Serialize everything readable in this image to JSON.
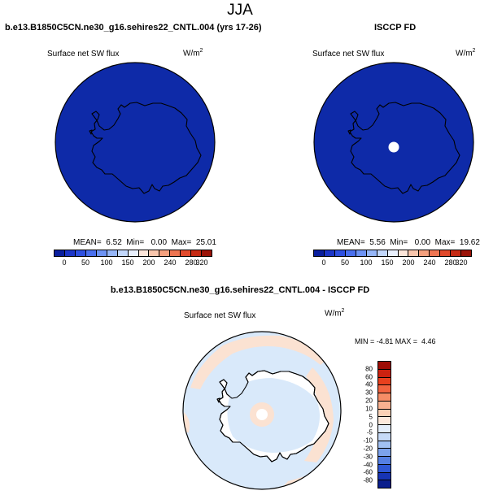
{
  "page": {
    "title": "JJA"
  },
  "panel_left": {
    "title": "b.e13.B1850C5CN.ne30_g16.sehires22_CNTL.004 (yrs 17-26)",
    "variable": "Surface net SW flux",
    "unit_base": "W/m",
    "unit_exp": "2",
    "stats": "MEAN=  6.52  Min=   0.00  Max=  25.01",
    "mean": 6.52,
    "min": 0.0,
    "max": 25.01
  },
  "panel_right": {
    "title": "ISCCP FD",
    "variable": "Surface net SW flux",
    "unit_base": "W/m",
    "unit_exp": "2",
    "stats": "MEAN=  5.56  Min=   0.00  Max=  19.62",
    "mean": 5.56,
    "min": 0.0,
    "max": 19.62
  },
  "panel_diff": {
    "title": "b.e13.B1850C5CN.ne30_g16.sehires22_CNTL.004 - ISCCP FD",
    "variable": "Surface net SW flux",
    "unit_base": "W/m",
    "unit_exp": "2",
    "stats": "MIN = -4.81 MAX =  4.46",
    "min": -4.81,
    "max": 4.46
  },
  "colorbar_abs": {
    "labels": [
      "0",
      "50",
      "100",
      "150",
      "200",
      "240",
      "280",
      "320"
    ],
    "colors": [
      "#0a1f9e",
      "#1c36c8",
      "#2e50e0",
      "#4a70ee",
      "#6d93f4",
      "#96b6f8",
      "#c2d7fb",
      "#e9f0fd",
      "#fde6da",
      "#f9c6ad",
      "#f4a07e",
      "#ee7552",
      "#e14a2c",
      "#c52a14",
      "#9a1308"
    ]
  },
  "colorbar_diff": {
    "labels": [
      "80",
      "60",
      "40",
      "30",
      "20",
      "10",
      "5",
      "0",
      "-5",
      "-10",
      "-20",
      "-30",
      "-40",
      "-60",
      "-80"
    ],
    "colors": [
      "#9e0d06",
      "#cc2210",
      "#e8401e",
      "#f26440",
      "#f68d66",
      "#f9b190",
      "#fbd1b6",
      "#fde9dc",
      "#e4eefb",
      "#c6daf7",
      "#a2c1f2",
      "#7ca2ec",
      "#557fe2",
      "#2f57d4",
      "#1734b4",
      "#0a1e8c"
    ]
  },
  "map_colors": {
    "ocean_fill": "#0e2aa8",
    "diff_ocean": "#d9e9fa",
    "diff_patch": "#fbe2d2",
    "missing": "#ffffff"
  }
}
